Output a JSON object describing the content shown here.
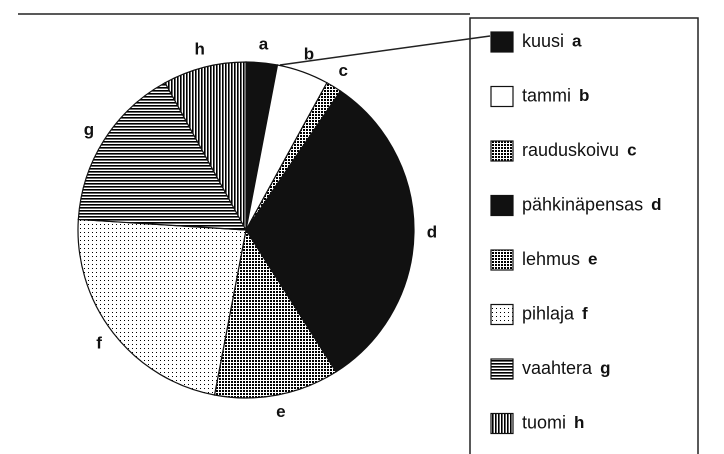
{
  "chart_data": {
    "type": "pie",
    "categories": [
      "kuusi",
      "tammi",
      "rauduskoivu",
      "pähkinäpensas",
      "lehmus",
      "pihlaja",
      "vaahtera",
      "tuomi"
    ],
    "labels": [
      "a",
      "b",
      "c",
      "d",
      "e",
      "f",
      "g",
      "h"
    ],
    "values": [
      3,
      5,
      1.5,
      31.5,
      12,
      23,
      16,
      8
    ],
    "colors": [
      "#111111",
      "#ffffff",
      "#777777",
      "#111111",
      "#bbbbbb",
      "#e4e4e4",
      "#333333",
      "#333333"
    ],
    "patterns": [
      "solid",
      "solid",
      "dots",
      "solid",
      "dots",
      "fine",
      "hlines",
      "vlines"
    ]
  }
}
